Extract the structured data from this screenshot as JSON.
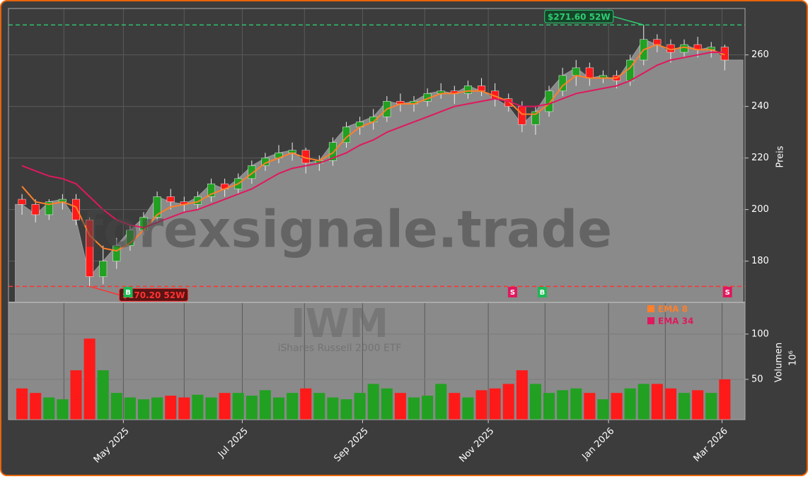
{
  "chart_data": {
    "type": "candlestick",
    "watermark": "forexsignale.trade",
    "symbol": "IWM",
    "subtitle": "iShares Russell 2000 ETF",
    "ylabel": "Preis",
    "xlim": [
      0,
      54.5
    ],
    "xticks": [
      {
        "value": 8.5,
        "label": "May 2025"
      },
      {
        "value": 17.3,
        "label": "Jul 2025"
      },
      {
        "value": 26.2,
        "label": "Sep 2025"
      },
      {
        "value": 35.5,
        "label": "Nov 2025"
      },
      {
        "value": 44.4,
        "label": "Jan 2026"
      },
      {
        "value": 52.8,
        "label": "Mar 2026"
      }
    ],
    "xminorticks": [
      4.1,
      13,
      21.9,
      30.8,
      39.7,
      48.6
    ],
    "ylim": [
      164,
      278
    ],
    "yticks": [
      180,
      200,
      220,
      240,
      260
    ],
    "grid": true,
    "colors": {
      "up": "#22a022",
      "down": "#ff1a1a",
      "area": "#8a8a8a",
      "wick": "#eeeeee"
    },
    "x": [
      1,
      2,
      3,
      4,
      5,
      6,
      7,
      8,
      9,
      10,
      11,
      12,
      13,
      14,
      15,
      16,
      17,
      18,
      19,
      20,
      21,
      22,
      23,
      24,
      25,
      26,
      27,
      28,
      29,
      30,
      31,
      32,
      33,
      34,
      35,
      36,
      37,
      38,
      39,
      40,
      41,
      42,
      43,
      44,
      45,
      46,
      47,
      48,
      49,
      50,
      51,
      52,
      53
    ],
    "open": [
      204,
      202,
      198,
      203,
      204,
      196,
      174,
      180,
      186,
      192,
      197,
      205,
      203,
      202,
      205,
      210,
      208,
      212,
      217,
      220,
      222,
      223,
      218,
      219,
      226,
      232,
      234,
      236,
      242,
      241,
      242,
      245,
      246,
      245,
      248,
      246,
      243,
      240,
      233,
      238,
      246,
      252,
      255,
      251,
      252,
      250,
      258,
      266,
      264,
      261,
      264,
      262,
      263
    ],
    "high": [
      206,
      204,
      204,
      206,
      206,
      197,
      186,
      189,
      194,
      199,
      207,
      208,
      205,
      207,
      212,
      212,
      214,
      219,
      222,
      225,
      226,
      224,
      221,
      228,
      234,
      236,
      239,
      244,
      245,
      244,
      247,
      249,
      248,
      250,
      251,
      249,
      245,
      242,
      240,
      248,
      255,
      258,
      257,
      254,
      254,
      260,
      271.6,
      268,
      266,
      266,
      267,
      265,
      264
    ],
    "low": [
      198,
      195,
      196,
      200,
      194,
      170.2,
      171,
      177,
      184,
      190,
      195,
      200,
      199,
      200,
      203,
      205,
      206,
      210,
      215,
      218,
      219,
      214,
      215,
      217,
      224,
      229,
      231,
      234,
      238,
      238,
      240,
      243,
      241,
      243,
      244,
      240,
      238,
      230,
      229,
      236,
      244,
      248,
      248,
      249,
      247,
      248,
      256,
      261,
      257,
      259,
      259,
      259,
      254
    ],
    "close": [
      202,
      198,
      203,
      204,
      196,
      174,
      180,
      186,
      192,
      197,
      205,
      203,
      202,
      205,
      210,
      208,
      212,
      217,
      220,
      222,
      223,
      218,
      219,
      226,
      232,
      234,
      236,
      242,
      241,
      242,
      245,
      246,
      245,
      248,
      246,
      243,
      240,
      233,
      238,
      246,
      252,
      255,
      251,
      252,
      250,
      258,
      266,
      264,
      261,
      264,
      262,
      263,
      258
    ],
    "series": [
      {
        "name": "EMA 8",
        "color": "#ff7f2a",
        "values": [
          209,
          203,
          202,
          203,
          201,
          190,
          185,
          184,
          187,
          192,
          198,
          201,
          202,
          203,
          206,
          208,
          210,
          214,
          218,
          220,
          222,
          220,
          219,
          222,
          228,
          232,
          234,
          239,
          241,
          241,
          243,
          245,
          245,
          246,
          246,
          244,
          242,
          237,
          237,
          241,
          248,
          252,
          251,
          251,
          251,
          255,
          262,
          264,
          262,
          263,
          262,
          262,
          260
        ]
      },
      {
        "name": "EMA 34",
        "color": "#e0185e",
        "values": [
          217,
          215,
          213,
          212,
          210,
          205,
          200,
          196,
          194,
          193,
          195,
          197,
          199,
          200,
          202,
          204,
          206,
          208,
          211,
          214,
          216,
          217,
          218,
          220,
          222,
          225,
          227,
          230,
          232,
          234,
          236,
          238,
          240,
          241,
          242,
          243,
          242,
          240,
          240,
          241,
          243,
          245,
          246,
          247,
          248,
          250,
          253,
          256,
          258,
          259,
          260,
          261,
          261
        ]
      }
    ],
    "levels": [
      {
        "label": "$271.60 52W",
        "value": 271.6,
        "x": 47,
        "color": "#2ecc71"
      },
      {
        "label": "$170.20 52W",
        "value": 170.2,
        "x": 6,
        "color": "#ff3333"
      }
    ],
    "signals": [
      {
        "x": 8.85,
        "label": "B",
        "color": "#1db954"
      },
      {
        "x": 37.3,
        "label": "S",
        "color": "#e0185e"
      },
      {
        "x": 39.5,
        "label": "B",
        "color": "#1db954"
      },
      {
        "x": 53.2,
        "label": "S",
        "color": "#e0185e"
      }
    ],
    "volume": {
      "ylabel": "Volumen",
      "offset_label": "10⁶",
      "ylim": [
        5.5,
        135
      ],
      "yticks": [
        50,
        100
      ],
      "values": [
        40,
        35,
        30,
        28,
        60,
        95,
        60,
        35,
        30,
        28,
        30,
        32,
        30,
        33,
        30,
        35,
        35,
        32,
        38,
        30,
        35,
        40,
        35,
        30,
        28,
        35,
        45,
        40,
        35,
        30,
        32,
        45,
        35,
        30,
        38,
        40,
        45,
        60,
        45,
        35,
        38,
        40,
        35,
        28,
        35,
        40,
        45,
        45,
        40,
        35,
        38,
        35,
        50
      ]
    }
  }
}
